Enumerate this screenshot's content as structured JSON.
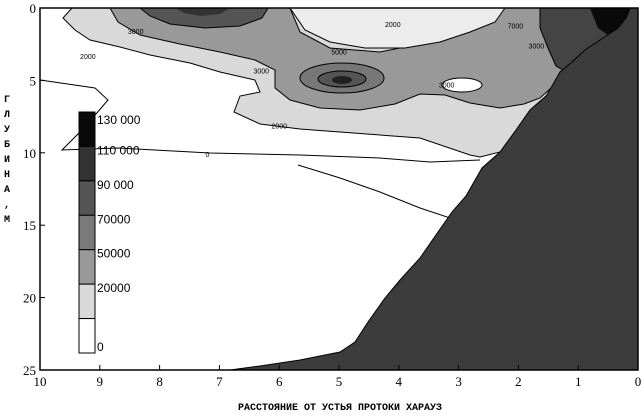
{
  "chart_data": {
    "type": "heatmap",
    "title": "",
    "xlabel": "РАССТОЯНИЕ ОТ УСТЬЯ ПРОТОКИ ХАРАУЗ",
    "ylabel": "ГЛУБИНА,М",
    "xlim": [
      10,
      0
    ],
    "ylim": [
      0,
      25
    ],
    "x_ticks": [
      "10",
      "9",
      "8",
      "7",
      "6",
      "5",
      "4",
      "3",
      "2",
      "1",
      "0"
    ],
    "y_ticks": [
      "0",
      "5",
      "10",
      "15",
      "20",
      "25"
    ],
    "legend": {
      "placement": "left",
      "levels": [
        "0",
        "20000",
        "50000",
        "70000",
        "90 000",
        "110 000",
        "130 000"
      ],
      "colors": [
        "#ffffff",
        "#d9d9d9",
        "#999999",
        "#7a7a7a",
        "#555555",
        "#333333",
        "#0a0a0a"
      ]
    },
    "contour_labels": [
      {
        "text": "0",
        "x": 7.2,
        "y": 10.1
      },
      {
        "text": "2000",
        "x": 9.2,
        "y": 3.3
      },
      {
        "text": "2000",
        "x": 6,
        "y": 8.1
      },
      {
        "text": "3000",
        "x": 8.4,
        "y": 1.6
      },
      {
        "text": "3000",
        "x": 6.3,
        "y": 4.3
      },
      {
        "text": "5000",
        "x": 5,
        "y": 3
      },
      {
        "text": "2000",
        "x": 4.1,
        "y": 1.1
      },
      {
        "text": "3000",
        "x": 3.2,
        "y": 5.3
      },
      {
        "text": "7000",
        "x": 2.05,
        "y": 1.2
      },
      {
        "text": "3000",
        "x": 1.7,
        "y": 2.6
      }
    ],
    "bottom_color": "#3c3c3c"
  }
}
